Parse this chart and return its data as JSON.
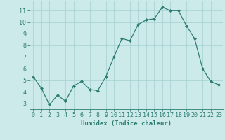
{
  "x": [
    0,
    1,
    2,
    3,
    4,
    5,
    6,
    7,
    8,
    9,
    10,
    11,
    12,
    13,
    14,
    15,
    16,
    17,
    18,
    19,
    20,
    21,
    22,
    23
  ],
  "y": [
    5.3,
    4.3,
    2.9,
    3.7,
    3.2,
    4.5,
    4.9,
    4.2,
    4.1,
    5.3,
    7.0,
    8.6,
    8.4,
    9.8,
    10.2,
    10.3,
    11.3,
    11.0,
    11.0,
    9.7,
    8.6,
    6.0,
    4.9,
    4.6
  ],
  "line_color": "#2e7d72",
  "marker": "D",
  "marker_size": 2.0,
  "bg_color": "#cceaea",
  "grid_color": "#aad4d4",
  "xlabel": "Humidex (Indice chaleur)",
  "ylim": [
    2.5,
    11.8
  ],
  "xlim": [
    -0.5,
    23.5
  ],
  "yticks": [
    3,
    4,
    5,
    6,
    7,
    8,
    9,
    10,
    11
  ],
  "xticks": [
    0,
    1,
    2,
    3,
    4,
    5,
    6,
    7,
    8,
    9,
    10,
    11,
    12,
    13,
    14,
    15,
    16,
    17,
    18,
    19,
    20,
    21,
    22,
    23
  ],
  "xlabel_fontsize": 6.5,
  "tick_fontsize": 6.0,
  "tick_color": "#2e7d72",
  "axis_color": "#2e7d72",
  "line_width": 0.9
}
